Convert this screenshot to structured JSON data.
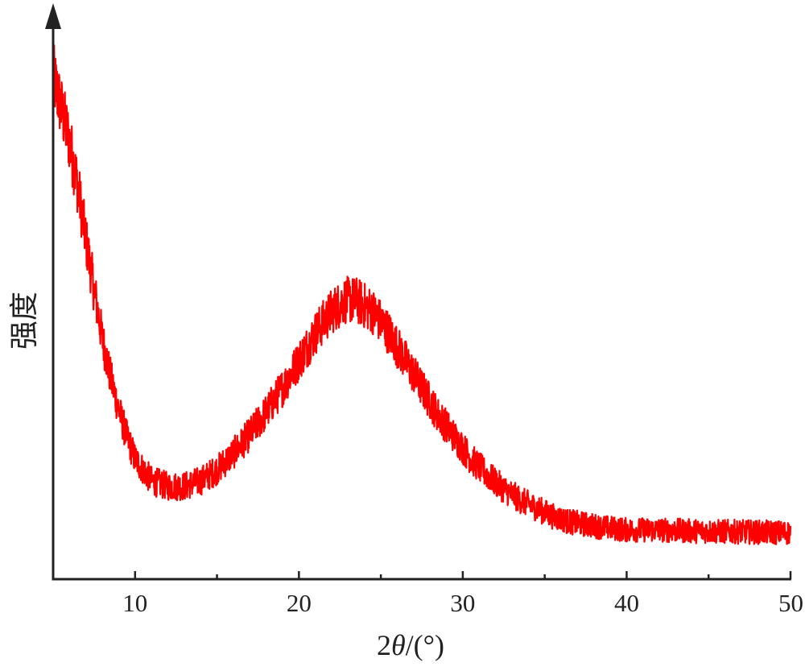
{
  "chart_data": {
    "type": "line",
    "title": "",
    "xlabel_prefix": "2",
    "xlabel_symbol": "θ",
    "xlabel_suffix": "/(°)",
    "ylabel": "强度",
    "xlim": [
      5,
      50
    ],
    "ylim": [
      0,
      100
    ],
    "x_ticks": [
      10,
      20,
      30,
      40,
      50
    ],
    "y_ticks_shown": false,
    "grid": false,
    "legend": "none",
    "series": [
      {
        "color": "#ff0000",
        "noise_amplitude": 3,
        "points": [
          [
            5.0,
            92
          ],
          [
            5.5,
            86
          ],
          [
            6.0,
            80
          ],
          [
            6.5,
            72
          ],
          [
            7.0,
            62
          ],
          [
            7.5,
            53
          ],
          [
            8.0,
            44
          ],
          [
            8.5,
            37
          ],
          [
            9.0,
            31
          ],
          [
            9.5,
            26
          ],
          [
            10.0,
            22
          ],
          [
            10.5,
            20
          ],
          [
            11.0,
            18
          ],
          [
            11.5,
            17.5
          ],
          [
            12.0,
            17
          ],
          [
            12.5,
            17
          ],
          [
            13.0,
            17
          ],
          [
            13.5,
            17.5
          ],
          [
            14.0,
            18
          ],
          [
            15.0,
            20
          ],
          [
            16.0,
            23
          ],
          [
            17.0,
            26.5
          ],
          [
            18.0,
            30.5
          ],
          [
            19.0,
            35
          ],
          [
            20.0,
            40
          ],
          [
            21.0,
            45
          ],
          [
            22.0,
            49
          ],
          [
            22.8,
            51
          ],
          [
            23.5,
            51
          ],
          [
            24.5,
            49
          ],
          [
            25.5,
            45
          ],
          [
            26.5,
            40
          ],
          [
            27.5,
            35
          ],
          [
            28.5,
            30
          ],
          [
            29.5,
            26
          ],
          [
            30.5,
            22
          ],
          [
            31.5,
            19
          ],
          [
            32.5,
            16.5
          ],
          [
            33.5,
            14.5
          ],
          [
            34.5,
            13
          ],
          [
            35.5,
            11.5
          ],
          [
            36.5,
            10.5
          ],
          [
            37.5,
            10
          ],
          [
            38.5,
            9.5
          ],
          [
            40.0,
            9
          ],
          [
            42.0,
            9
          ],
          [
            44.0,
            8.8
          ],
          [
            46.0,
            8.7
          ],
          [
            48.0,
            8.6
          ],
          [
            50.0,
            8.5
          ]
        ]
      }
    ]
  }
}
